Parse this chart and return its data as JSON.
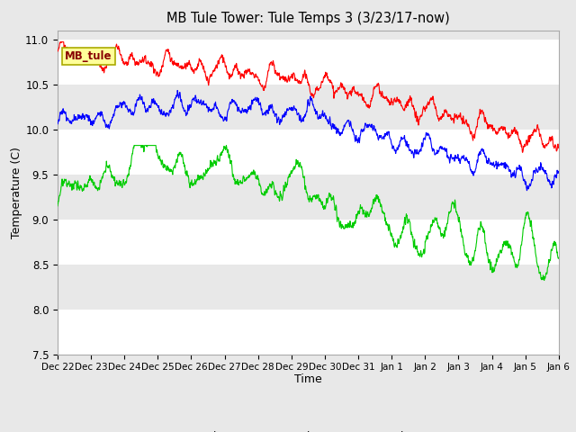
{
  "title": "MB Tule Tower: Tule Temps 3 (3/23/17-now)",
  "xlabel": "Time",
  "ylabel": "Temperature (C)",
  "ylim": [
    7.5,
    11.1
  ],
  "yticks": [
    7.5,
    8.0,
    8.5,
    9.0,
    9.5,
    10.0,
    10.5,
    11.0
  ],
  "bg_color": "#e8e8e8",
  "strip_colors": [
    "#ffffff",
    "#e8e8e8"
  ],
  "legend_label": "MB_tule",
  "series": {
    "Tul3_Ts-8": {
      "color": "#ff0000"
    },
    "Tul3_Ts-2": {
      "color": "#0000ff"
    },
    "Tul3_Tw+4": {
      "color": "#00cc00"
    }
  },
  "tick_labels": [
    "Dec 22",
    "Dec 23",
    "Dec 24",
    "Dec 25",
    "Dec 26",
    "Dec 27",
    "Dec 28",
    "Dec 29",
    "Dec 30",
    "Dec 31",
    "Jan 1",
    "Jan 2",
    "Jan 3",
    "Jan 4",
    "Jan 5",
    "Jan 6"
  ]
}
